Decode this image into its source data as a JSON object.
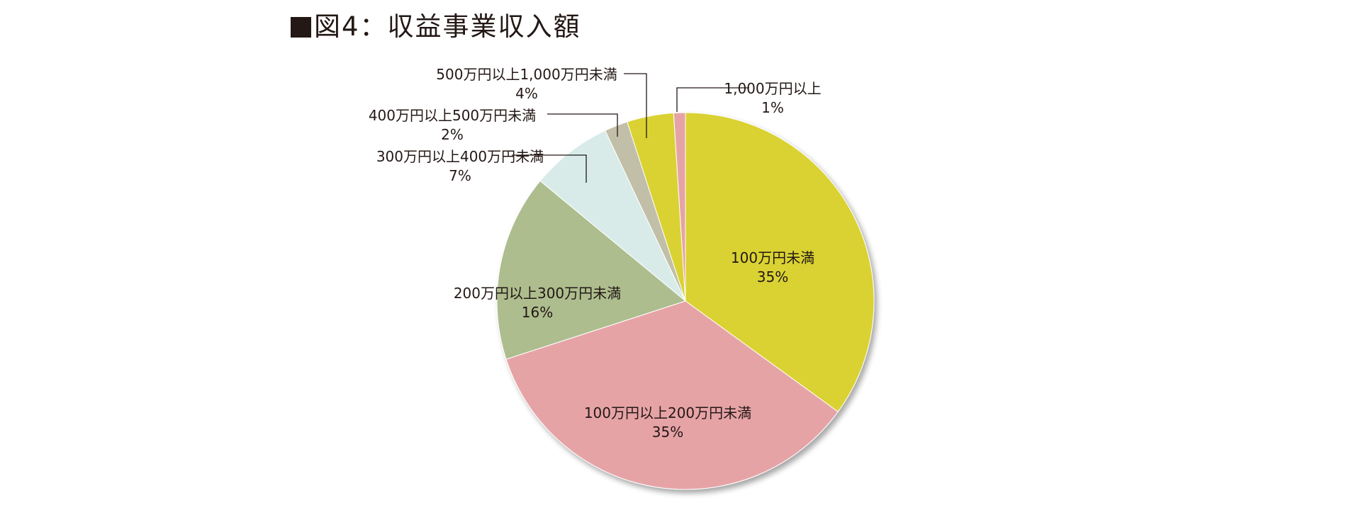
{
  "title": "図4：収益事業収入額",
  "chart_data": {
    "type": "pie",
    "title": "図4：収益事業収入額",
    "start": "12 o'clock",
    "direction": "clockwise",
    "slices": [
      {
        "label": "100万円未満",
        "value": 35,
        "value_label": "35%",
        "color": "#d9d233"
      },
      {
        "label": "100万円以上200万円未満",
        "value": 35,
        "value_label": "35%",
        "color": "#e6a3a6"
      },
      {
        "label": "200万円以上300万円未満",
        "value": 16,
        "value_label": "16%",
        "color": "#adbd8e"
      },
      {
        "label": "300万円以上400万円未満",
        "value": 7,
        "value_label": "7%",
        "color": "#d8ebe9"
      },
      {
        "label": "400万円以上500万円未満",
        "value": 2,
        "value_label": "2%",
        "color": "#c2bfa8"
      },
      {
        "label": "500万円以上1,000万円未満",
        "value": 4,
        "value_label": "4%",
        "color": "#d9d233"
      },
      {
        "label": "1,000万円以上",
        "value": 1,
        "value_label": "1%",
        "color": "#e6a3a6"
      }
    ]
  }
}
